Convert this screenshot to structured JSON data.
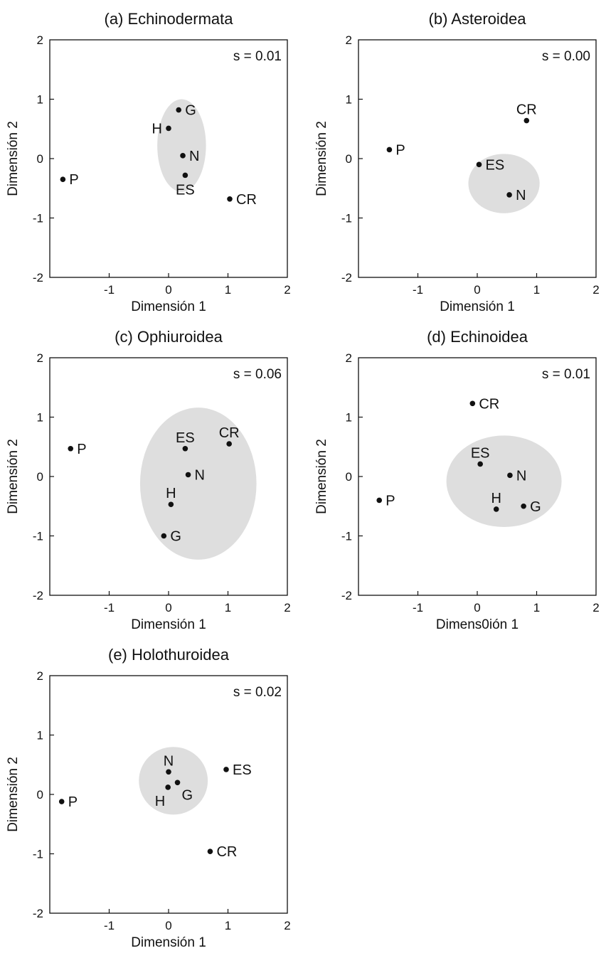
{
  "figure": {
    "background": "#ffffff",
    "ellipse_color": "#dedede",
    "point_color": "#111111"
  },
  "chart_data": [
    {
      "type": "scatter",
      "title": "(a) Echinodermata",
      "xlabel": "Dimensión 1",
      "ylabel": "Dimensión 2",
      "stress": "s = 0.01",
      "xlim": [
        -2,
        2
      ],
      "ylim": [
        -2,
        2
      ],
      "xticks": [
        "-1",
        "0",
        "1",
        "2"
      ],
      "yticks": [
        "2",
        "1",
        "0",
        "-1",
        "-2"
      ],
      "points": [
        {
          "label": "P",
          "x": -1.78,
          "y": -0.35,
          "label_pos": "right"
        },
        {
          "label": "G",
          "x": 0.17,
          "y": 0.82,
          "label_pos": "right"
        },
        {
          "label": "H",
          "x": 0.0,
          "y": 0.51,
          "label_pos": "left"
        },
        {
          "label": "N",
          "x": 0.24,
          "y": 0.05,
          "label_pos": "right"
        },
        {
          "label": "ES",
          "x": 0.28,
          "y": -0.28,
          "label_pos": "below"
        },
        {
          "label": "CR",
          "x": 1.03,
          "y": -0.68,
          "label_pos": "right"
        }
      ],
      "ellipse": {
        "cx": 0.22,
        "cy": 0.22,
        "rx": 0.41,
        "ry": 0.78
      }
    },
    {
      "type": "scatter",
      "title": "(b) Asteroidea",
      "xlabel": "Dimensión 1",
      "ylabel": "Dimensión 2",
      "stress": "s = 0.00",
      "xlim": [
        -2,
        2
      ],
      "ylim": [
        -2,
        2
      ],
      "xticks": [
        "-1",
        "0",
        "1",
        "2"
      ],
      "yticks": [
        "2",
        "1",
        "0",
        "-1",
        "-2"
      ],
      "points": [
        {
          "label": "P",
          "x": -1.48,
          "y": 0.15,
          "label_pos": "right"
        },
        {
          "label": "CR",
          "x": 0.83,
          "y": 0.64,
          "label_pos": "above"
        },
        {
          "label": "ES",
          "x": 0.03,
          "y": -0.1,
          "label_pos": "right"
        },
        {
          "label": "N",
          "x": 0.54,
          "y": -0.61,
          "label_pos": "right"
        }
      ],
      "ellipse": {
        "cx": 0.45,
        "cy": -0.42,
        "rx": 0.6,
        "ry": 0.5
      }
    },
    {
      "type": "scatter",
      "title": "(c) Ophiuroidea",
      "xlabel": "Dimensión 1",
      "ylabel": "Dimensión 2",
      "stress": "s = 0.06",
      "xlim": [
        -2,
        2
      ],
      "ylim": [
        -2,
        2
      ],
      "xticks": [
        "-1",
        "0",
        "1",
        "2"
      ],
      "yticks": [
        "2",
        "1",
        "0",
        "-1",
        "-2"
      ],
      "points": [
        {
          "label": "P",
          "x": -1.65,
          "y": 0.47,
          "label_pos": "right"
        },
        {
          "label": "ES",
          "x": 0.28,
          "y": 0.47,
          "label_pos": "above"
        },
        {
          "label": "CR",
          "x": 1.02,
          "y": 0.55,
          "label_pos": "above"
        },
        {
          "label": "N",
          "x": 0.33,
          "y": 0.03,
          "label_pos": "right"
        },
        {
          "label": "H",
          "x": 0.04,
          "y": -0.47,
          "label_pos": "above"
        },
        {
          "label": "G",
          "x": -0.08,
          "y": -1.0,
          "label_pos": "right"
        }
      ],
      "ellipse": {
        "cx": 0.5,
        "cy": -0.12,
        "rx": 0.98,
        "ry": 1.28
      }
    },
    {
      "type": "scatter",
      "title": "(d) Echinoidea",
      "xlabel": "Dimens0ión 1",
      "ylabel": "Dimensión 2",
      "stress": "s = 0.01",
      "xlim": [
        -2,
        2
      ],
      "ylim": [
        -2,
        2
      ],
      "xticks": [
        "-1",
        "0",
        "1",
        "2"
      ],
      "yticks": [
        "2",
        "1",
        "0",
        "-1",
        "-2"
      ],
      "points": [
        {
          "label": "CR",
          "x": -0.08,
          "y": 1.23,
          "label_pos": "right"
        },
        {
          "label": "P",
          "x": -1.65,
          "y": -0.4,
          "label_pos": "right"
        },
        {
          "label": "ES",
          "x": 0.05,
          "y": 0.21,
          "label_pos": "above"
        },
        {
          "label": "N",
          "x": 0.55,
          "y": 0.02,
          "label_pos": "right"
        },
        {
          "label": "H",
          "x": 0.32,
          "y": -0.55,
          "label_pos": "above"
        },
        {
          "label": "G",
          "x": 0.78,
          "y": -0.5,
          "label_pos": "right"
        }
      ],
      "ellipse": {
        "cx": 0.45,
        "cy": -0.08,
        "rx": 0.97,
        "ry": 0.77
      }
    },
    {
      "type": "scatter",
      "title": "(e) Holothuroidea",
      "xlabel": "Dimensión 1",
      "ylabel": "Dimensión 2",
      "stress": "s = 0.02",
      "xlim": [
        -2,
        2
      ],
      "ylim": [
        -2,
        2
      ],
      "xticks": [
        "-1",
        "0",
        "1",
        "2"
      ],
      "yticks": [
        "2",
        "1",
        "0",
        "-1",
        "-2"
      ],
      "points": [
        {
          "label": "P",
          "x": -1.8,
          "y": -0.12,
          "label_pos": "right"
        },
        {
          "label": "N",
          "x": 0.0,
          "y": 0.38,
          "label_pos": "above"
        },
        {
          "label": "ES",
          "x": 0.97,
          "y": 0.42,
          "label_pos": "right"
        },
        {
          "label": "H",
          "x": -0.01,
          "y": 0.12,
          "label_pos": "belowleft"
        },
        {
          "label": "G",
          "x": 0.15,
          "y": 0.2,
          "label_pos": "belowright"
        },
        {
          "label": "CR",
          "x": 0.7,
          "y": -0.96,
          "label_pos": "right"
        }
      ],
      "ellipse": {
        "cx": 0.08,
        "cy": 0.23,
        "rx": 0.58,
        "ry": 0.57
      }
    }
  ]
}
